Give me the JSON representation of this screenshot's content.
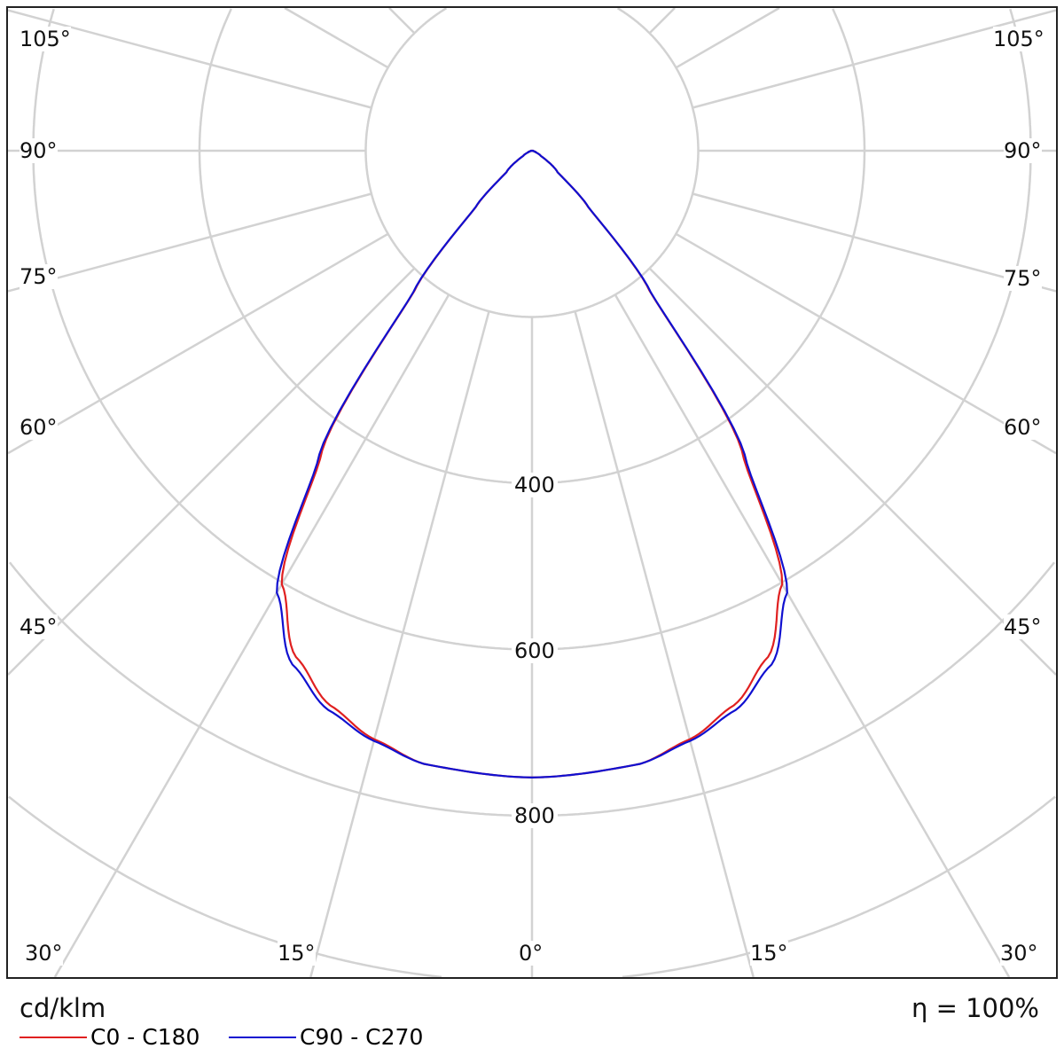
{
  "chart_data": {
    "type": "polar",
    "unit_label": "cd/klm",
    "efficiency_label": "η = 100%",
    "radial_ticks": [
      200,
      400,
      600,
      800,
      1000,
      1200
    ],
    "radial_tick_labels": [
      "400",
      "600",
      "800"
    ],
    "radial_labeled_values": [
      400,
      600,
      800
    ],
    "angle_labels": {
      "bottom": [
        "30°",
        "15°",
        "0°",
        "15°",
        "30°"
      ],
      "left": [
        "105°",
        "90°",
        "75°",
        "60°",
        "45°"
      ],
      "right": [
        "105°",
        "90°",
        "75°",
        "60°",
        "45°"
      ]
    },
    "angle_step_deg": 15,
    "grid": true,
    "legend_placement": "bottom-left",
    "angles_deg": [
      0,
      10,
      15,
      20,
      25,
      30,
      35,
      40,
      45,
      50,
      60,
      70,
      80,
      90
    ],
    "series": [
      {
        "name": "C0 - C180",
        "color": "#e02020",
        "values": [
          754,
          749,
          733,
          710,
          672,
          602,
          440,
          220,
          95,
          40,
          12,
          4,
          1,
          0
        ]
      },
      {
        "name": "C90 - C270",
        "color": "#1010d0",
        "values": [
          754,
          749,
          735,
          716,
          682,
          614,
          446,
          222,
          96,
          40,
          12,
          4,
          1,
          0
        ]
      }
    ]
  }
}
